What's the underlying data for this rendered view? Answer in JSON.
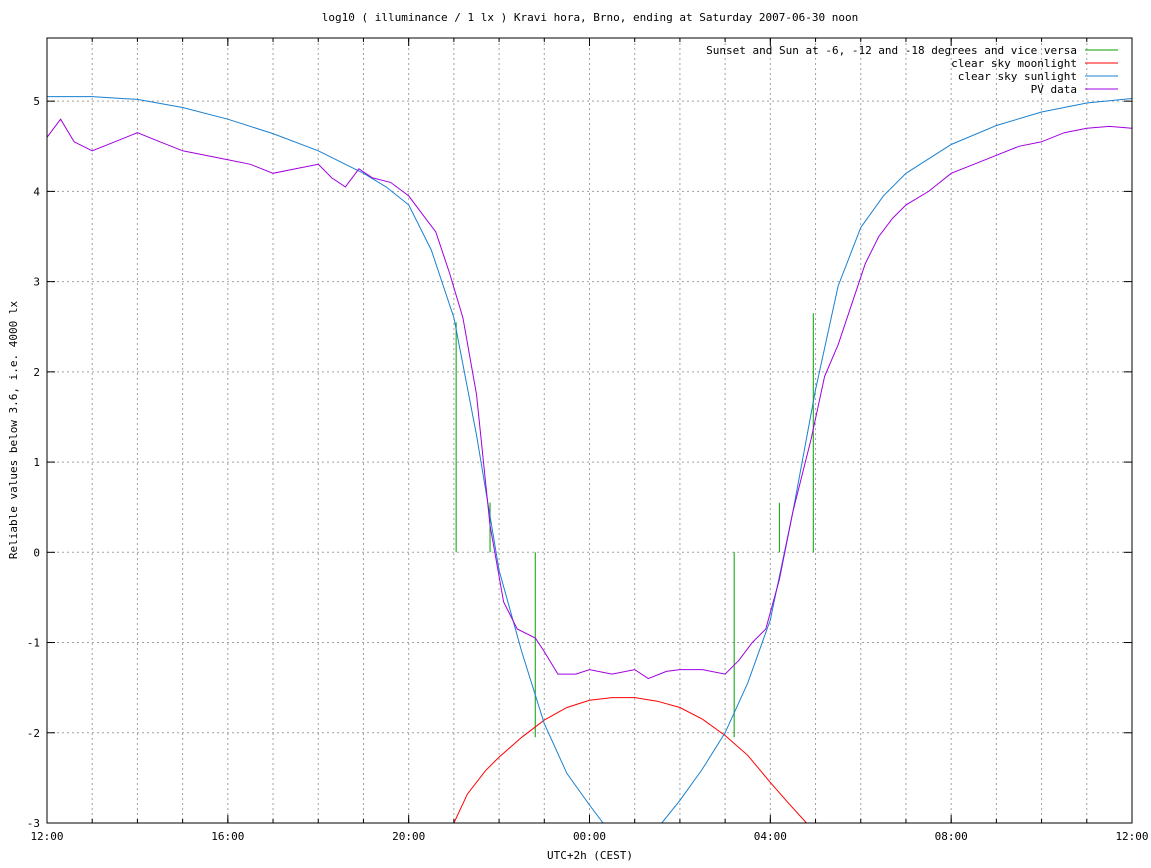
{
  "chart_data": {
    "type": "line",
    "title": "log10 ( illuminance / 1 lx ) Kravi hora, Brno, ending at Saturday 2007-06-30 noon",
    "xlabel": "UTC+2h (CEST)",
    "ylabel": "Reliable values below 3.6, i.e. 4000 lx",
    "x_unit": "hours since 12:00 (start of plotted window)",
    "xlim": [
      0,
      24
    ],
    "ylim": [
      -3,
      5.7
    ],
    "x_ticks": [
      {
        "h": 0,
        "label": "12:00"
      },
      {
        "h": 4,
        "label": "16:00"
      },
      {
        "h": 8,
        "label": "20:00"
      },
      {
        "h": 12,
        "label": "00:00"
      },
      {
        "h": 16,
        "label": "04:00"
      },
      {
        "h": 20,
        "label": "08:00"
      },
      {
        "h": 24,
        "label": "12:00"
      }
    ],
    "x_minor_step": 1,
    "y_ticks": [
      {
        "v": -3,
        "label": "-3"
      },
      {
        "v": -2,
        "label": "-2"
      },
      {
        "v": -1,
        "label": "-1"
      },
      {
        "v": 0,
        "label": "0"
      },
      {
        "v": 1,
        "label": "1"
      },
      {
        "v": 2,
        "label": "2"
      },
      {
        "v": 3,
        "label": "3"
      },
      {
        "v": 4,
        "label": "4"
      },
      {
        "v": 5,
        "label": "5"
      }
    ],
    "grid": true,
    "legend_position": "top-right",
    "series": [
      {
        "name": "Sunset and Sun at -6, -12 and -18 degrees and vice versa",
        "color": "#00a000",
        "kind": "vertical-markers",
        "markers": [
          {
            "x": 9.05,
            "y_from": 0,
            "y_to": 2.55
          },
          {
            "x": 9.8,
            "y_from": 0,
            "y_to": 0.55
          },
          {
            "x": 10.8,
            "y_from": -2.05,
            "y_to": 0
          },
          {
            "x": 15.2,
            "y_from": -2.05,
            "y_to": 0
          },
          {
            "x": 16.2,
            "y_from": 0,
            "y_to": 0.55
          },
          {
            "x": 16.95,
            "y_from": 0,
            "y_to": 2.65
          }
        ]
      },
      {
        "name": "clear sky moonlight",
        "color": "#ff0000",
        "kind": "line",
        "x": [
          9.0,
          9.3,
          9.7,
          10.0,
          10.5,
          11.0,
          11.5,
          12.0,
          12.5,
          13.0,
          13.5,
          14.0,
          14.5,
          15.0,
          15.5,
          16.0,
          16.4,
          16.8
        ],
        "y": [
          -3.0,
          -2.68,
          -2.42,
          -2.27,
          -2.05,
          -1.86,
          -1.72,
          -1.64,
          -1.61,
          -1.61,
          -1.65,
          -1.72,
          -1.85,
          -2.03,
          -2.25,
          -2.55,
          -2.78,
          -3.0
        ]
      },
      {
        "name": "clear sky sunlight",
        "color": "#1a80d0",
        "kind": "line",
        "x": [
          0,
          1,
          2,
          3,
          4,
          5,
          6,
          7,
          7.5,
          8,
          8.5,
          9,
          9.5,
          10,
          10.5,
          11,
          11.5,
          12.0,
          12.3,
          13.6,
          14.0,
          14.5,
          15.0,
          15.5,
          16.0,
          16.5,
          17.0,
          17.5,
          18.0,
          18.5,
          19.0,
          20.0,
          21.0,
          22.0,
          23.0,
          24.0
        ],
        "y": [
          5.05,
          5.05,
          5.02,
          4.93,
          4.8,
          4.64,
          4.45,
          4.2,
          4.05,
          3.85,
          3.35,
          2.6,
          1.3,
          -0.2,
          -1.1,
          -1.9,
          -2.45,
          -2.8,
          -3.0,
          -3.0,
          -2.75,
          -2.4,
          -2.0,
          -1.45,
          -0.75,
          0.45,
          1.8,
          2.95,
          3.6,
          3.95,
          4.2,
          4.52,
          4.73,
          4.88,
          4.98,
          5.03
        ]
      },
      {
        "name": "PV data",
        "color": "#a000e0",
        "kind": "line",
        "x": [
          0,
          0.3,
          0.6,
          1.0,
          1.5,
          2.0,
          2.5,
          3.0,
          3.5,
          4.0,
          4.5,
          5.0,
          5.5,
          6.0,
          6.3,
          6.6,
          6.9,
          7.2,
          7.6,
          8.0,
          8.3,
          8.6,
          8.9,
          9.2,
          9.5,
          9.8,
          10.1,
          10.4,
          10.8,
          11.0,
          11.3,
          11.7,
          12.0,
          12.5,
          13.0,
          13.3,
          13.7,
          14.0,
          14.5,
          15.0,
          15.3,
          15.6,
          15.9,
          16.2,
          16.5,
          16.9,
          17.2,
          17.5,
          17.8,
          18.1,
          18.4,
          18.7,
          19.0,
          19.5,
          20.0,
          20.5,
          21.0,
          21.5,
          22.0,
          22.5,
          23.0,
          23.5,
          24.0
        ],
        "y": [
          4.6,
          4.8,
          4.55,
          4.45,
          4.55,
          4.65,
          4.55,
          4.45,
          4.4,
          4.35,
          4.3,
          4.2,
          4.25,
          4.3,
          4.15,
          4.05,
          4.25,
          4.15,
          4.1,
          3.95,
          3.75,
          3.55,
          3.1,
          2.6,
          1.75,
          0.3,
          -0.55,
          -0.85,
          -0.95,
          -1.1,
          -1.35,
          -1.35,
          -1.3,
          -1.35,
          -1.3,
          -1.4,
          -1.32,
          -1.3,
          -1.3,
          -1.35,
          -1.2,
          -1.0,
          -0.85,
          -0.3,
          0.45,
          1.25,
          1.95,
          2.3,
          2.75,
          3.2,
          3.5,
          3.7,
          3.85,
          4.0,
          4.2,
          4.3,
          4.4,
          4.5,
          4.55,
          4.65,
          4.7,
          4.72,
          4.7
        ]
      }
    ]
  }
}
